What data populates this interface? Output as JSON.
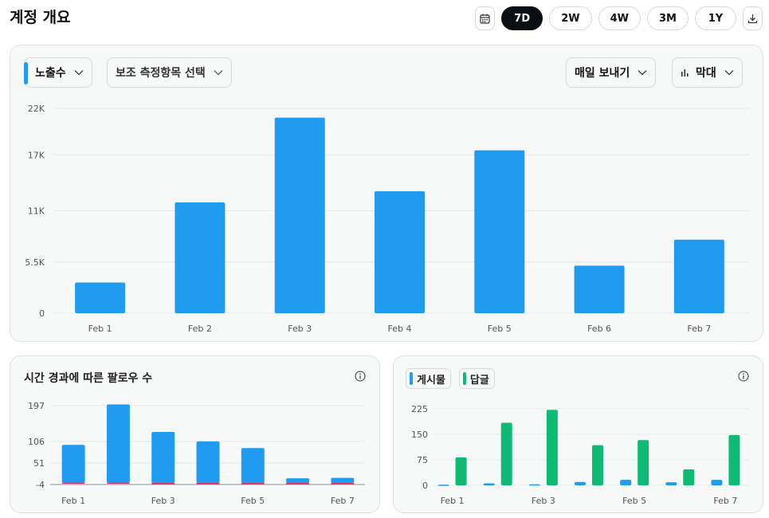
{
  "page": {
    "title": "계정 개요"
  },
  "range": {
    "options": [
      "7D",
      "2W",
      "4W",
      "3M",
      "1Y"
    ],
    "selected": "7D",
    "calendar_icon": "calendar-icon",
    "download_icon": "download-icon"
  },
  "main_card": {
    "metric_label": "노출수",
    "secondary_label": "보조 측정항목 선택",
    "export_label": "매일 보내기",
    "type_label": "막대",
    "type_icon": "bar-chart-icon",
    "accent_color": "#1f9cf0"
  },
  "followers_card": {
    "title": "시간 경과에 따른 팔로우 수",
    "info_icon": "info-icon"
  },
  "posts_card": {
    "legend": [
      {
        "label": "게시물",
        "color": "#1f9cf0"
      },
      {
        "label": "답글",
        "color": "#0fba74"
      }
    ],
    "info_icon": "info-icon"
  },
  "chart_data": [
    {
      "type": "bar",
      "categories": [
        "Feb 1",
        "Feb 2",
        "Feb 3",
        "Feb 4",
        "Feb 5",
        "Feb 6",
        "Feb 7"
      ],
      "values": [
        3300,
        11900,
        21000,
        13100,
        17500,
        5100,
        7900
      ],
      "yticks": [
        0,
        5500,
        11000,
        17000,
        22000
      ],
      "ytick_labels": [
        "0",
        "5.5K",
        "11K",
        "17K",
        "22K"
      ],
      "ylim": [
        0,
        22000
      ],
      "color": "#1f9cf0",
      "grid": true
    },
    {
      "type": "bar",
      "categories": [
        "Feb 1",
        "Feb 2",
        "Feb 3",
        "Feb 4",
        "Feb 5",
        "Feb 6",
        "Feb 7"
      ],
      "xtick_labels": [
        "Feb 1",
        "",
        "Feb 3",
        "",
        "Feb 5",
        "",
        "Feb 7"
      ],
      "series": [
        {
          "values": [
            97,
            200,
            130,
            106,
            89,
            12,
            13
          ],
          "color": "#1f9cf0"
        },
        {
          "values": [
            0,
            0,
            -3,
            -3,
            -3,
            -3,
            -3
          ],
          "color": "#e0245e"
        }
      ],
      "yticks": [
        -4,
        51,
        106,
        197
      ],
      "ytick_labels": [
        "-4",
        "51",
        "106",
        "197"
      ],
      "ylim": [
        -4,
        197
      ],
      "grid": true
    },
    {
      "type": "bar",
      "categories": [
        "Feb 1",
        "Feb 2",
        "Feb 3",
        "Feb 4",
        "Feb 5",
        "Feb 6",
        "Feb 7"
      ],
      "xtick_labels": [
        "Feb 1",
        "",
        "Feb 3",
        "",
        "Feb 5",
        "",
        "Feb 7"
      ],
      "series": [
        {
          "name": "게시물",
          "values": [
            2,
            6,
            3,
            10,
            16,
            9,
            16
          ],
          "color": "#1f9cf0"
        },
        {
          "name": "답글",
          "values": [
            82,
            184,
            222,
            118,
            133,
            47,
            148
          ],
          "color": "#0fba74"
        }
      ],
      "yticks": [
        0,
        75,
        150,
        225
      ],
      "ytick_labels": [
        "0",
        "75",
        "150",
        "225"
      ],
      "ylim": [
        0,
        225
      ],
      "grid": true
    }
  ]
}
